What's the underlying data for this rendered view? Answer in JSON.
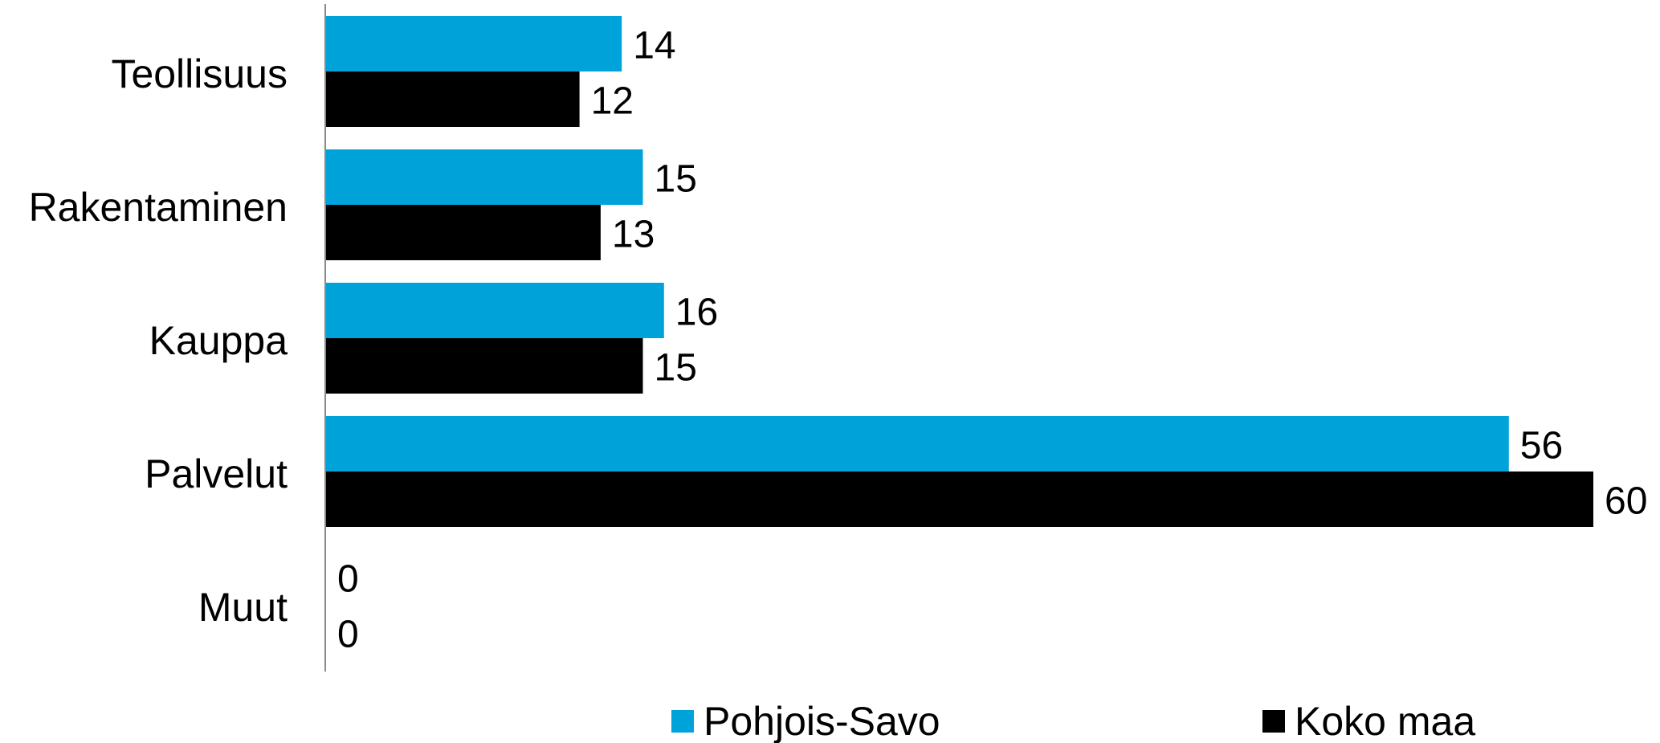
{
  "chart_data": {
    "type": "bar",
    "orientation": "horizontal",
    "categories": [
      "Teollisuus",
      "Rakentaminen",
      "Kauppa",
      "Palvelut",
      "Muut"
    ],
    "series": [
      {
        "name": "Pohjois-Savo",
        "color": "#00A3D9",
        "values": [
          14,
          15,
          16,
          56,
          0
        ]
      },
      {
        "name": "Koko maa",
        "color": "#000000",
        "values": [
          12,
          13,
          15,
          60,
          0
        ]
      }
    ],
    "xlim": [
      0,
      60
    ],
    "grid": false,
    "data_labels": true,
    "legend_position": "bottom"
  }
}
